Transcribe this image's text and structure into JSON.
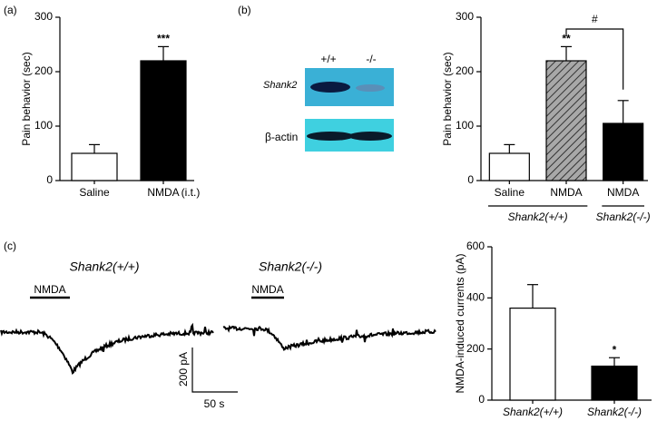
{
  "panel_labels": [
    "(a)",
    "(b)",
    "(c)"
  ],
  "chart_data": [
    {
      "type": "bar",
      "ylabel": "Pain behavior (sec)",
      "categories": [
        "Saline",
        "NMDA"
      ],
      "values": [
        50,
        220
      ],
      "errors": [
        16,
        26
      ],
      "colors": [
        "#ffffff",
        "#000000"
      ],
      "hatched": [
        false,
        false
      ],
      "annotations": [
        {
          "index": 1,
          "text": "***"
        }
      ],
      "note": "(i.t.)",
      "ylim": [
        0,
        300
      ],
      "yticks": [
        0,
        100,
        200,
        300
      ]
    },
    {
      "type": "bar",
      "ylabel": "Pain behavior (sec)",
      "categories": [
        "Saline",
        "NMDA",
        "NMDA"
      ],
      "values": [
        50,
        220,
        105
      ],
      "errors": [
        16,
        26,
        42
      ],
      "colors": [
        "#ffffff",
        "#a8a8a8",
        "#000000"
      ],
      "hatched": [
        false,
        true,
        false
      ],
      "annotations": [
        {
          "index": 1,
          "text": "**"
        }
      ],
      "comparison": {
        "from": 1,
        "to": 2,
        "text": "#"
      },
      "groups": [
        {
          "label": "Shank2(+/+)",
          "start": 0,
          "end": 1
        },
        {
          "label": "Shank2(-/-)",
          "start": 2,
          "end": 2
        }
      ],
      "ylim": [
        0,
        300
      ],
      "yticks": [
        0,
        100,
        200,
        300
      ]
    },
    {
      "type": "bar",
      "ylabel": "NMDA-induced currents (pA)",
      "categories": [
        "Shank2(+/+)",
        "Shank2(-/-)"
      ],
      "values": [
        360,
        133
      ],
      "errors": [
        92,
        33
      ],
      "colors": [
        "#ffffff",
        "#000000"
      ],
      "hatched": [
        false,
        false
      ],
      "annotations": [
        {
          "index": 1,
          "text": "*"
        }
      ],
      "ylim": [
        0,
        600
      ],
      "yticks": [
        0,
        200,
        400,
        600
      ]
    }
  ],
  "blot": {
    "lanes": [
      "+/+",
      "-/-"
    ],
    "rows": [
      "Shank2",
      "β-actin"
    ]
  },
  "traces": {
    "titles": [
      "Shank2(+/+)",
      "Shank2(-/-)"
    ],
    "stimulus": [
      "NMDA",
      "NMDA"
    ],
    "scale_y": "200 pA",
    "scale_x": "50 s"
  }
}
